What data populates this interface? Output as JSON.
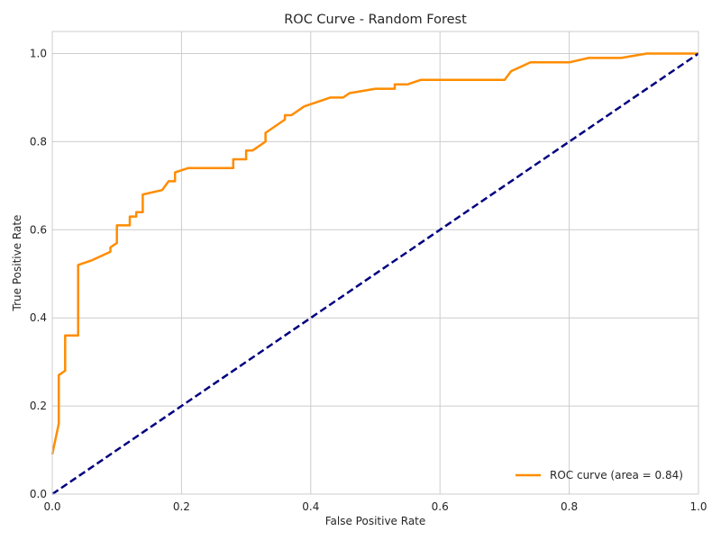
{
  "chart_data": {
    "type": "line",
    "title": "ROC Curve - Random Forest",
    "xlabel": "False Positive Rate",
    "ylabel": "True Positive Rate",
    "xlim": [
      0.0,
      1.0
    ],
    "ylim": [
      0.0,
      1.05
    ],
    "xticks": [
      0.0,
      0.2,
      0.4,
      0.6,
      0.8,
      1.0
    ],
    "yticks": [
      0.0,
      0.2,
      0.4,
      0.6,
      0.8,
      1.0
    ],
    "xtick_labels": [
      "0.0",
      "0.2",
      "0.4",
      "0.6",
      "0.8",
      "1.0"
    ],
    "ytick_labels": [
      "0.0",
      "0.2",
      "0.4",
      "0.6",
      "0.8",
      "1.0"
    ],
    "grid": true,
    "legend_position": "lower-right",
    "series": [
      {
        "name": "ROC curve (area = 0.84)",
        "color": "#ff8c00",
        "style": "solid",
        "x": [
          0.0,
          0.01,
          0.01,
          0.02,
          0.02,
          0.04,
          0.04,
          0.06,
          0.09,
          0.09,
          0.1,
          0.1,
          0.12,
          0.12,
          0.13,
          0.13,
          0.14,
          0.14,
          0.17,
          0.18,
          0.19,
          0.19,
          0.21,
          0.28,
          0.28,
          0.3,
          0.3,
          0.31,
          0.33,
          0.33,
          0.36,
          0.36,
          0.37,
          0.39,
          0.41,
          0.43,
          0.45,
          0.46,
          0.5,
          0.53,
          0.53,
          0.55,
          0.57,
          0.7,
          0.71,
          0.74,
          0.8,
          0.83,
          0.88,
          0.92,
          1.0
        ],
        "y": [
          0.09,
          0.16,
          0.27,
          0.28,
          0.36,
          0.36,
          0.52,
          0.53,
          0.55,
          0.56,
          0.57,
          0.61,
          0.61,
          0.63,
          0.63,
          0.64,
          0.64,
          0.68,
          0.69,
          0.71,
          0.71,
          0.73,
          0.74,
          0.74,
          0.76,
          0.76,
          0.78,
          0.78,
          0.8,
          0.82,
          0.85,
          0.86,
          0.86,
          0.88,
          0.89,
          0.9,
          0.9,
          0.91,
          0.92,
          0.92,
          0.93,
          0.93,
          0.94,
          0.94,
          0.96,
          0.98,
          0.98,
          0.99,
          0.99,
          1.0,
          1.0
        ]
      },
      {
        "name": "",
        "color": "#000080",
        "style": "dashed",
        "x": [
          0.0,
          1.0
        ],
        "y": [
          0.0,
          1.0
        ]
      }
    ]
  }
}
